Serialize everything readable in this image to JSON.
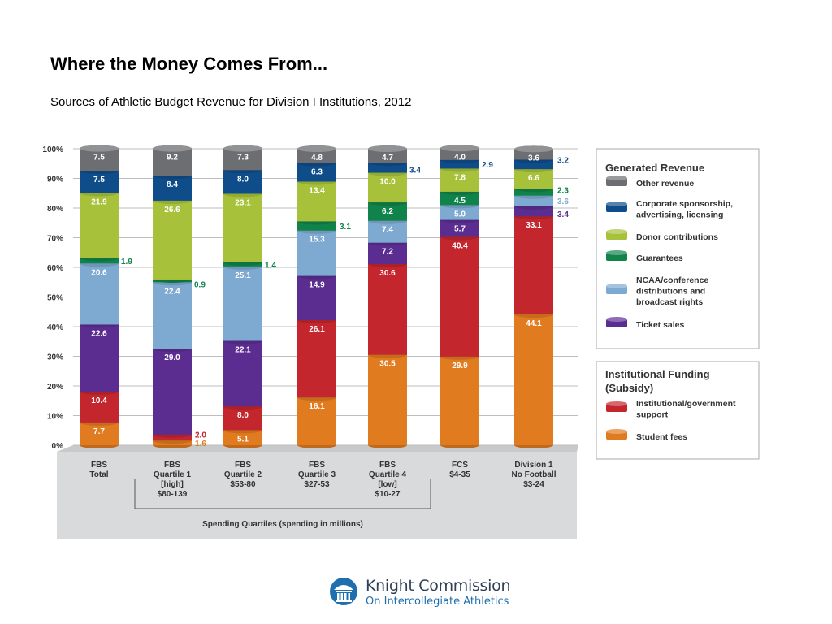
{
  "title": "Where the Money Comes From...",
  "subtitle": "Sources of Athletic Budget Revenue for Division I Institutions, 2012",
  "colors": {
    "student_fees": "#e07b20",
    "institutional": "#c4262e",
    "ticket_sales": "#5b2d91",
    "ncaa": "#7ea9d1",
    "guarantees": "#10834a",
    "donor": "#a7c23a",
    "corporate": "#0f4c8a",
    "other": "#6d6e71"
  },
  "chart_data": {
    "type": "bar",
    "stacked": true,
    "ylim": [
      0,
      100
    ],
    "y_ticks": [
      "0%",
      "10%",
      "20%",
      "30%",
      "40%",
      "50%",
      "60%",
      "70%",
      "80%",
      "90%",
      "100%"
    ],
    "categories": [
      [
        "FBS",
        "Total"
      ],
      [
        "FBS",
        "Quartile 1",
        "[high]",
        "$80-139"
      ],
      [
        "FBS",
        "Quartile 2",
        "$53-80"
      ],
      [
        "FBS",
        "Quartile 3",
        "$27-53"
      ],
      [
        "FBS",
        "Quartile 4",
        "[low]",
        "$10-27"
      ],
      [
        "FCS",
        "$4-35"
      ],
      [
        "Division 1",
        "No Football",
        "$3-24"
      ]
    ],
    "series": [
      {
        "name": "Student fees",
        "color_key": "student_fees",
        "values": [
          7.7,
          1.6,
          5.1,
          16.1,
          30.5,
          29.9,
          44.1
        ]
      },
      {
        "name": "Institutional/government support",
        "color_key": "institutional",
        "values": [
          10.4,
          2.0,
          8.0,
          26.1,
          30.6,
          40.4,
          33.1
        ]
      },
      {
        "name": "Ticket sales",
        "color_key": "ticket_sales",
        "values": [
          22.6,
          29.0,
          22.1,
          14.9,
          7.2,
          5.7,
          3.4
        ]
      },
      {
        "name": "NCAA/conference distributions and broadcast rights",
        "color_key": "ncaa",
        "values": [
          20.6,
          22.4,
          25.1,
          15.3,
          7.4,
          5.0,
          3.6
        ]
      },
      {
        "name": "Guarantees",
        "color_key": "guarantees",
        "values": [
          1.9,
          0.9,
          1.4,
          3.1,
          6.2,
          4.5,
          2.3
        ]
      },
      {
        "name": "Donor contributions",
        "color_key": "donor",
        "values": [
          21.9,
          26.6,
          23.1,
          13.4,
          10.0,
          7.8,
          6.6
        ]
      },
      {
        "name": "Corporate sponsorship, advertising, licensing",
        "color_key": "corporate",
        "values": [
          7.5,
          8.4,
          8.0,
          6.3,
          3.4,
          2.9,
          3.2
        ]
      },
      {
        "name": "Other revenue",
        "color_key": "other",
        "values": [
          7.5,
          9.2,
          7.3,
          4.8,
          4.7,
          4.0,
          3.6
        ]
      }
    ],
    "group_label": "Spending Quartiles (spending in millions)",
    "legend": {
      "placement": "right",
      "groups": [
        {
          "title": "Generated Revenue",
          "items": [
            {
              "label": "Other revenue",
              "color_key": "other"
            },
            {
              "label": "Corporate sponsorship, advertising, licensing",
              "color_key": "corporate"
            },
            {
              "label": "Donor contributions",
              "color_key": "donor"
            },
            {
              "label": "Guarantees",
              "color_key": "guarantees"
            },
            {
              "label": "NCAA/conference distributions and broadcast rights",
              "color_key": "ncaa"
            },
            {
              "label": "Ticket sales",
              "color_key": "ticket_sales"
            }
          ]
        },
        {
          "title": "Institutional Funding (Subsidy)",
          "items": [
            {
              "label": "Institutional/government support",
              "color_key": "institutional"
            },
            {
              "label": "Student fees",
              "color_key": "student_fees"
            }
          ]
        }
      ]
    }
  },
  "logo": {
    "name": "Knight Commission",
    "tagline": "On Intercollegiate Athletics"
  }
}
